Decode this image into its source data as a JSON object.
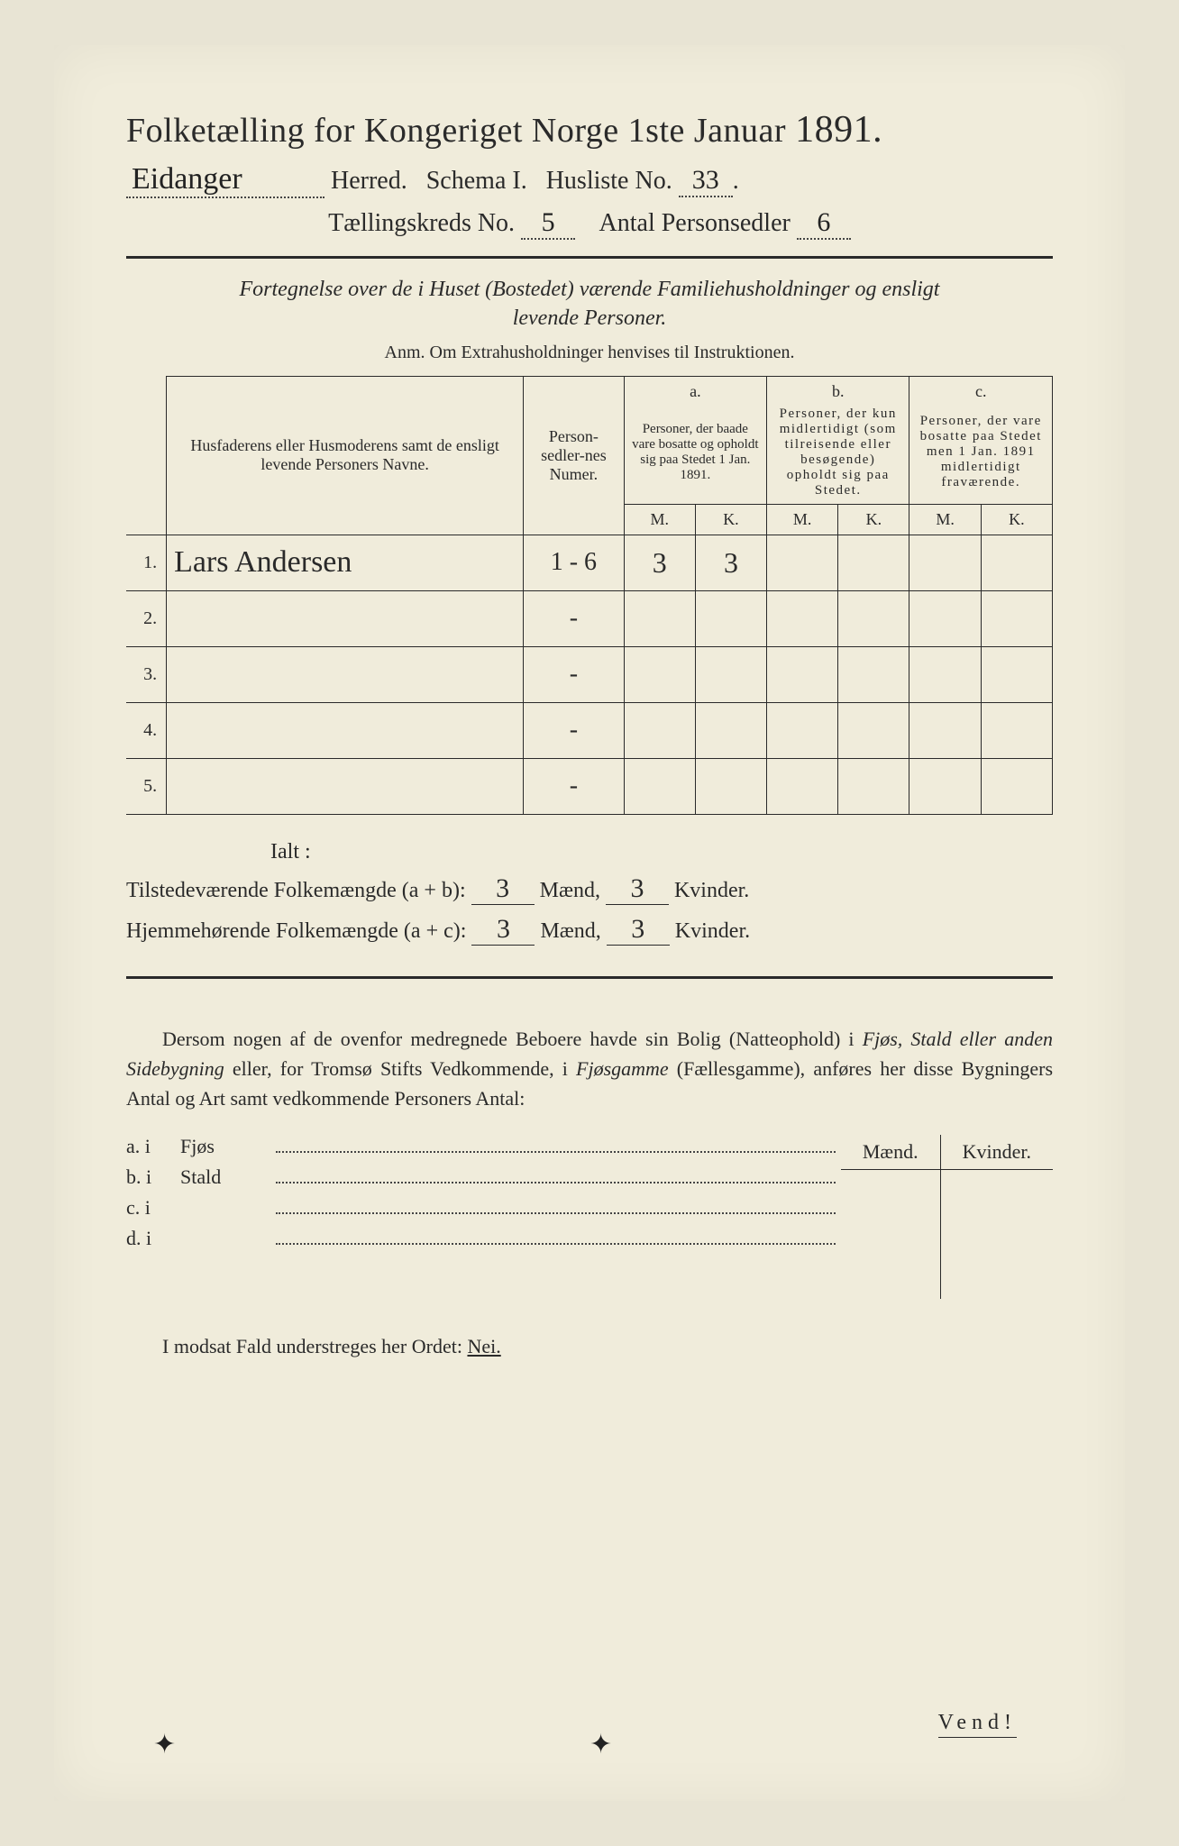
{
  "title": {
    "main": "Folketælling for Kongeriget Norge 1ste Januar",
    "year": "1891."
  },
  "header": {
    "herred_value": "Eidanger",
    "herred_label": "Herred.",
    "schema_label": "Schema I.",
    "husliste_label": "Husliste No.",
    "husliste_no": "33",
    "kreds_label": "Tællingskreds No.",
    "kreds_no": "5",
    "antal_label": "Antal Personsedler",
    "antal_value": "6"
  },
  "fortegn": {
    "line1": "Fortegnelse over de i Huset (Bostedet) værende Familiehusholdninger og ensligt",
    "line2": "levende Personer.",
    "anm": "Anm.  Om Extrahusholdninger henvises til Instruktionen."
  },
  "table": {
    "col_name": "Husfaderens eller Husmoderens samt de ensligt levende Personers Navne.",
    "col_num": "Person-sedler-nes Numer.",
    "col_a_label": "a.",
    "col_a_text": "Personer, der baade vare bosatte og opholdt sig paa Stedet 1 Jan. 1891.",
    "col_b_label": "b.",
    "col_b_text": "Personer, der kun midlertidigt (som tilreisende eller besøgende) opholdt sig paa Stedet.",
    "col_c_label": "c.",
    "col_c_text": "Personer, der vare bosatte paa Stedet men 1 Jan. 1891 midlertidigt fraværende.",
    "m": "M.",
    "k": "K.",
    "rows": [
      {
        "n": "1.",
        "name": "Lars Andersen",
        "num": "1 - 6",
        "am": "3",
        "ak": "3",
        "bm": "",
        "bk": "",
        "cm": "",
        "ck": ""
      },
      {
        "n": "2.",
        "name": "",
        "num": "-",
        "am": "",
        "ak": "",
        "bm": "",
        "bk": "",
        "cm": "",
        "ck": ""
      },
      {
        "n": "3.",
        "name": "",
        "num": "-",
        "am": "",
        "ak": "",
        "bm": "",
        "bk": "",
        "cm": "",
        "ck": ""
      },
      {
        "n": "4.",
        "name": "",
        "num": "-",
        "am": "",
        "ak": "",
        "bm": "",
        "bk": "",
        "cm": "",
        "ck": ""
      },
      {
        "n": "5.",
        "name": "",
        "num": "-",
        "am": "",
        "ak": "",
        "bm": "",
        "bk": "",
        "cm": "",
        "ck": ""
      }
    ]
  },
  "ialt": {
    "label": "Ialt :",
    "line1_pre": "Tilstedeværende Folkemængde (a + b):",
    "line2_pre": "Hjemmehørende Folkemængde (a + c):",
    "maend": "Mænd,",
    "kvinder": "Kvinder.",
    "l1_m": "3",
    "l1_k": "3",
    "l2_m": "3",
    "l2_k": "3"
  },
  "para": "Dersom nogen af de ovenfor medregnede Beboere havde sin Bolig (Natteophold) i Fjøs, Stald eller anden Sidebygning eller, for Tromsø Stifts Vedkommende, i Fjøsgamme (Fællesgamme), anføres her disse Bygningers Antal og Art samt vedkommende Personers Antal:",
  "buildings": {
    "maend": "Mænd.",
    "kvinder": "Kvinder.",
    "rows": [
      {
        "lbl": "a.  i",
        "kind": "Fjøs"
      },
      {
        "lbl": "b.  i",
        "kind": "Stald"
      },
      {
        "lbl": "c.  i",
        "kind": ""
      },
      {
        "lbl": "d.  i",
        "kind": ""
      }
    ]
  },
  "bottom": {
    "text_pre": "I modsat Fald understreges her Ordet:",
    "nei": "Nei."
  },
  "vendi": "Vend!"
}
